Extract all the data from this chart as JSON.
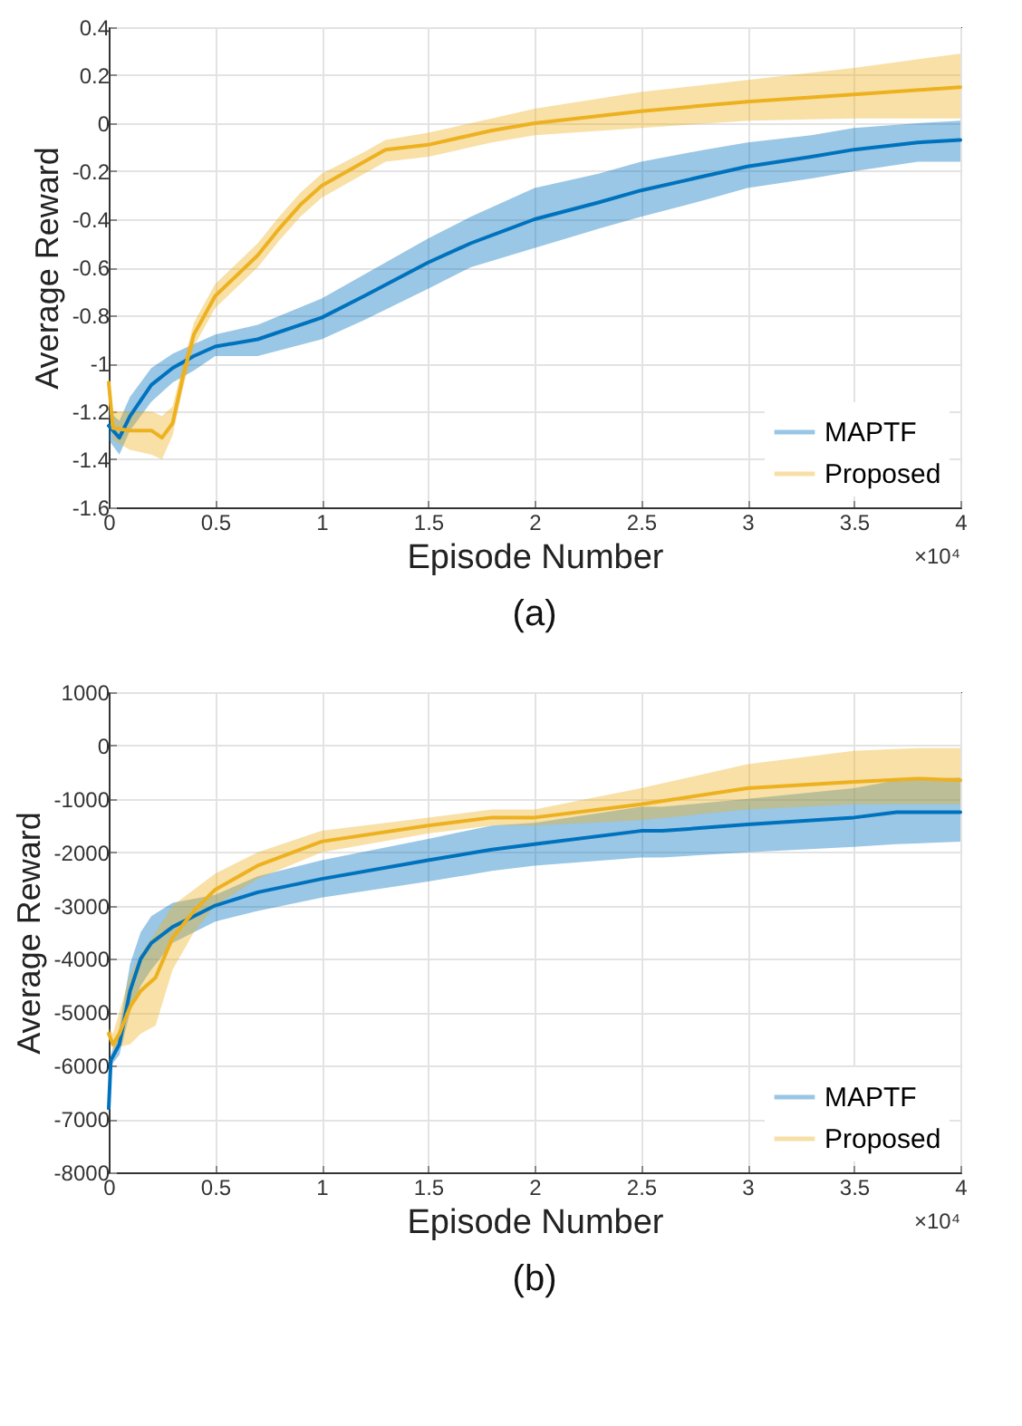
{
  "chart_data": [
    {
      "type": "line",
      "title": "(a)",
      "xlabel": "Episode Number",
      "ylabel": "Average Reward",
      "annotations": [
        "×10⁴"
      ],
      "xlim": [
        0,
        4
      ],
      "xticks": [
        0,
        0.5,
        1,
        1.5,
        2,
        2.5,
        3,
        3.5,
        4
      ],
      "ylim": [
        -1.6,
        0.4
      ],
      "yticks": [
        -1.6,
        -1.4,
        -1.2,
        -1,
        -0.8,
        -0.6,
        -0.4,
        -0.2,
        0,
        0.2,
        0.4
      ],
      "grid": true,
      "legend": "bottom right",
      "series": [
        {
          "name": "MAPTF",
          "color": "#0072bd",
          "x": [
            0,
            0.05,
            0.1,
            0.2,
            0.3,
            0.4,
            0.5,
            0.7,
            1,
            1.2,
            1.5,
            1.7,
            2,
            2.3,
            2.5,
            2.8,
            3,
            3.3,
            3.5,
            3.8,
            4
          ],
          "values": [
            -1.26,
            -1.31,
            -1.22,
            -1.09,
            -1.02,
            -0.97,
            -0.93,
            -0.9,
            -0.81,
            -0.72,
            -0.58,
            -0.5,
            -0.4,
            -0.33,
            -0.28,
            -0.22,
            -0.18,
            -0.14,
            -0.11,
            -0.08,
            -0.07
          ],
          "lower": [
            -1.32,
            -1.38,
            -1.28,
            -1.16,
            -1.08,
            -1.03,
            -0.97,
            -0.97,
            -0.9,
            -0.82,
            -0.69,
            -0.6,
            -0.52,
            -0.44,
            -0.39,
            -0.32,
            -0.27,
            -0.23,
            -0.2,
            -0.16,
            -0.16
          ],
          "upper": [
            -1.2,
            -1.24,
            -1.14,
            -1.02,
            -0.96,
            -0.92,
            -0.88,
            -0.84,
            -0.73,
            -0.63,
            -0.48,
            -0.39,
            -0.27,
            -0.21,
            -0.16,
            -0.11,
            -0.08,
            -0.05,
            -0.02,
            0,
            0.01
          ]
        },
        {
          "name": "Proposed",
          "color": "#edb120",
          "x": [
            0,
            0.02,
            0.1,
            0.2,
            0.25,
            0.3,
            0.35,
            0.4,
            0.5,
            0.7,
            0.8,
            0.9,
            1,
            1.2,
            1.3,
            1.5,
            1.8,
            2,
            2.5,
            3,
            3.5,
            4
          ],
          "values": [
            -1.08,
            -1.27,
            -1.28,
            -1.28,
            -1.31,
            -1.25,
            -1.05,
            -0.88,
            -0.72,
            -0.55,
            -0.44,
            -0.34,
            -0.26,
            -0.16,
            -0.11,
            -0.09,
            -0.03,
            0,
            0.05,
            0.09,
            0.12,
            0.15
          ],
          "lower": [
            -1.1,
            -1.32,
            -1.36,
            -1.38,
            -1.4,
            -1.3,
            -1.1,
            -0.93,
            -0.77,
            -0.6,
            -0.49,
            -0.39,
            -0.31,
            -0.21,
            -0.16,
            -0.14,
            -0.08,
            -0.05,
            -0.02,
            0.01,
            0.02,
            0.02
          ],
          "upper": [
            -1.06,
            -1.2,
            -1.2,
            -1.2,
            -1.22,
            -1.18,
            -1,
            -0.83,
            -0.67,
            -0.5,
            -0.39,
            -0.29,
            -0.21,
            -0.12,
            -0.07,
            -0.04,
            0.02,
            0.06,
            0.13,
            0.18,
            0.23,
            0.29
          ]
        }
      ]
    },
    {
      "type": "line",
      "title": "(b)",
      "xlabel": "Episode Number",
      "ylabel": "Average Reward",
      "annotations": [
        "×10⁴"
      ],
      "xlim": [
        0,
        4
      ],
      "xticks": [
        0,
        0.5,
        1,
        1.5,
        2,
        2.5,
        3,
        3.5,
        4
      ],
      "ylim": [
        -8000,
        1000
      ],
      "yticks": [
        -8000,
        -7000,
        -6000,
        -5000,
        -4000,
        -3000,
        -2000,
        -1000,
        0,
        1000
      ],
      "grid": true,
      "legend": "bottom right",
      "series": [
        {
          "name": "MAPTF",
          "color": "#0072bd",
          "x": [
            0,
            0.01,
            0.05,
            0.1,
            0.15,
            0.2,
            0.3,
            0.5,
            0.7,
            1,
            1.5,
            1.8,
            2,
            2.5,
            2.6,
            3,
            3.5,
            3.7,
            4
          ],
          "values": [
            -6800,
            -5900,
            -5600,
            -4600,
            -4000,
            -3700,
            -3400,
            -3000,
            -2750,
            -2500,
            -2150,
            -1950,
            -1850,
            -1600,
            -1600,
            -1480,
            -1350,
            -1250,
            -1250
          ],
          "lower": [
            -6800,
            -6000,
            -5800,
            -5000,
            -4500,
            -4200,
            -3700,
            -3300,
            -3100,
            -2850,
            -2550,
            -2350,
            -2250,
            -2100,
            -2100,
            -2000,
            -1900,
            -1850,
            -1800
          ],
          "upper": [
            -6800,
            -5800,
            -5300,
            -4100,
            -3500,
            -3200,
            -2950,
            -2800,
            -2450,
            -2150,
            -1750,
            -1500,
            -1450,
            -1150,
            -1150,
            -1000,
            -800,
            -650,
            -600
          ]
        },
        {
          "name": "Proposed",
          "color": "#edb120",
          "x": [
            0,
            0.02,
            0.05,
            0.1,
            0.15,
            0.22,
            0.3,
            0.4,
            0.5,
            0.7,
            1,
            1.5,
            1.8,
            2,
            2.5,
            3,
            3.5,
            3.8,
            4
          ],
          "values": [
            -5400,
            -5600,
            -5400,
            -4900,
            -4600,
            -4350,
            -3600,
            -3100,
            -2700,
            -2250,
            -1800,
            -1500,
            -1350,
            -1350,
            -1100,
            -800,
            -680,
            -620,
            -650
          ],
          "lower": [
            -5500,
            -5700,
            -5650,
            -5600,
            -5400,
            -5250,
            -4200,
            -3500,
            -3000,
            -2500,
            -2000,
            -1650,
            -1500,
            -1500,
            -1400,
            -1200,
            -1100,
            -1100,
            -1100
          ],
          "upper": [
            -5300,
            -5400,
            -5000,
            -4300,
            -3900,
            -3500,
            -3000,
            -2700,
            -2400,
            -2000,
            -1600,
            -1350,
            -1200,
            -1200,
            -800,
            -350,
            -100,
            -50,
            -50
          ]
        }
      ]
    }
  ]
}
